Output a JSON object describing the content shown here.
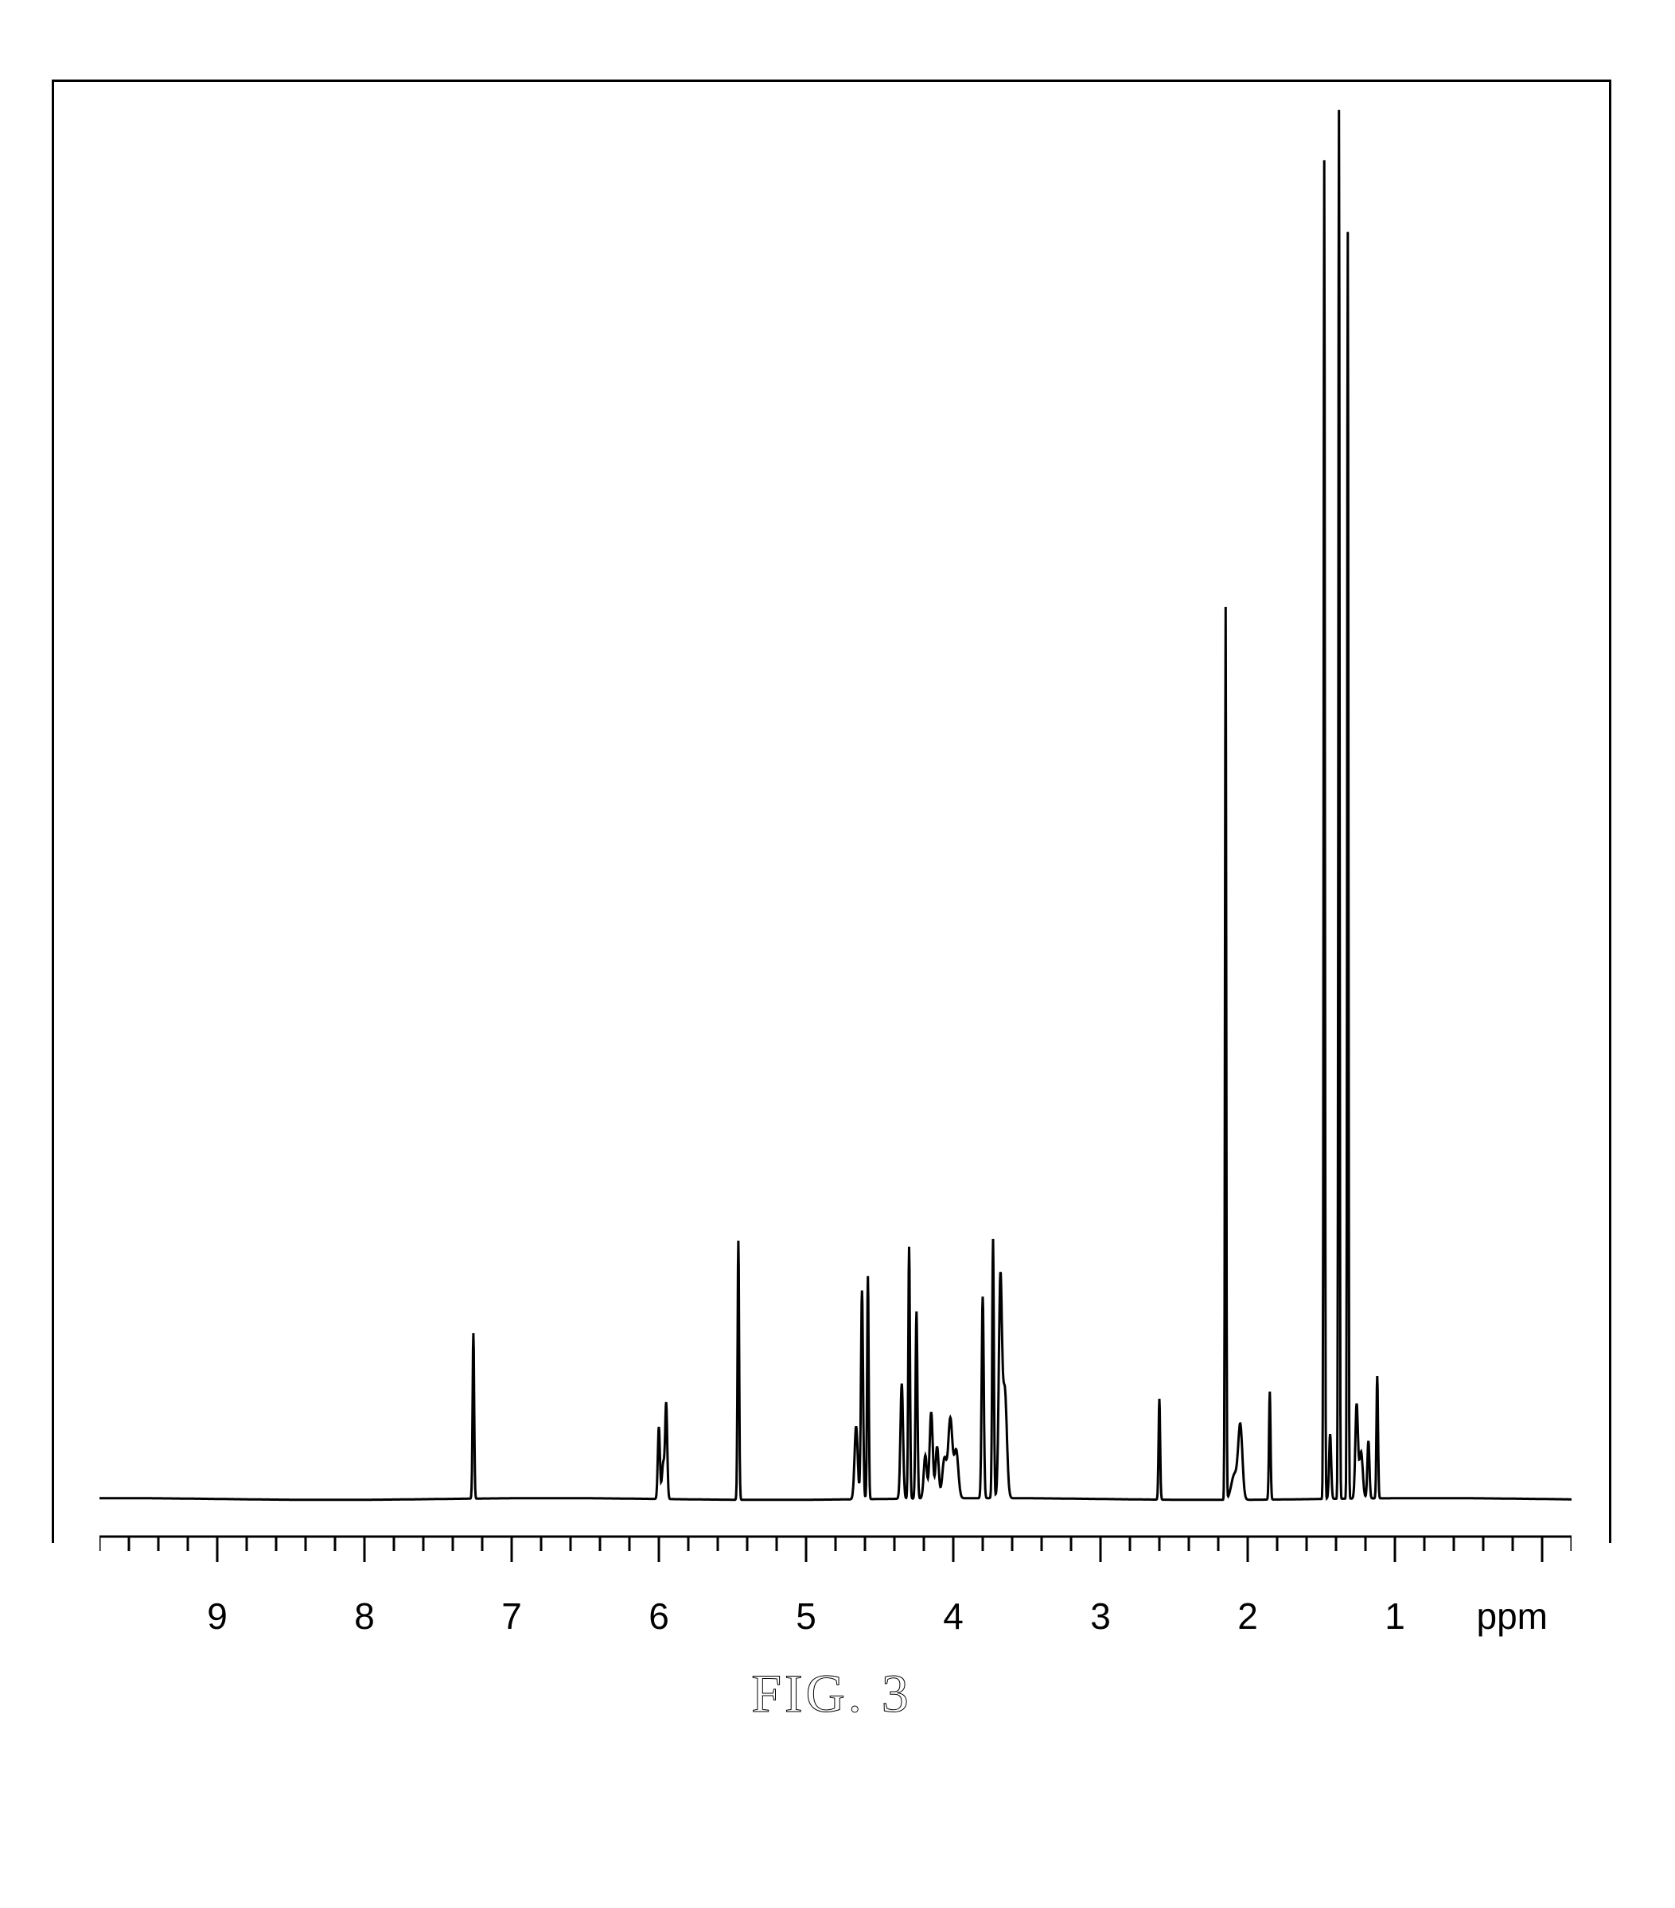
{
  "nmr_spectrum": {
    "type": "nmr_spectrum",
    "xlim": [
      9.8,
      -0.2
    ],
    "ylim": [
      0,
      100
    ],
    "x_axis_label": "ppm",
    "tick_labels": [
      "9",
      "8",
      "7",
      "6",
      "5",
      "4",
      "3",
      "2",
      "1"
    ],
    "tick_positions": [
      9,
      8,
      7,
      6,
      5,
      4,
      3,
      2,
      1
    ],
    "minor_tick_step": 0.2,
    "background_color": "#ffffff",
    "line_color": "#000000",
    "line_width": 3,
    "axis_line_width": 3,
    "tick_font_size": 46,
    "caption": "FIG. 3",
    "caption_font_size": 68,
    "baseline_height": 2.5,
    "peaks": [
      {
        "ppm": 7.26,
        "height": 11.5,
        "width": 0.015
      },
      {
        "ppm": 6.0,
        "height": 5.0,
        "width": 0.02,
        "shoulder": true
      },
      {
        "ppm": 5.95,
        "height": 6.5,
        "width": 0.02
      },
      {
        "ppm": 5.46,
        "height": 18.0,
        "width": 0.015
      },
      {
        "ppm": 4.62,
        "height": 14.5,
        "width": 0.02,
        "shoulder_left": true
      },
      {
        "ppm": 4.58,
        "height": 15.5,
        "width": 0.015
      },
      {
        "ppm": 4.35,
        "height": 8.0,
        "width": 0.025
      },
      {
        "ppm": 4.3,
        "height": 17.5,
        "width": 0.016
      },
      {
        "ppm": 4.25,
        "height": 13.0,
        "width": 0.018
      },
      {
        "ppm": 4.15,
        "height": 6.0,
        "width": 0.03,
        "multiplet": true
      },
      {
        "ppm": 4.02,
        "height": 5.5,
        "width": 0.04,
        "multiplet": true
      },
      {
        "ppm": 3.8,
        "height": 14.0,
        "width": 0.02
      },
      {
        "ppm": 3.73,
        "height": 18.0,
        "width": 0.016
      },
      {
        "ppm": 3.68,
        "height": 15.0,
        "width": 0.03,
        "shoulder": true
      },
      {
        "ppm": 2.6,
        "height": 7.0,
        "width": 0.015
      },
      {
        "ppm": 2.15,
        "height": 62.0,
        "width": 0.012
      },
      {
        "ppm": 2.05,
        "height": 5.0,
        "width": 0.04,
        "shoulder_left": true
      },
      {
        "ppm": 1.85,
        "height": 7.5,
        "width": 0.015
      },
      {
        "ppm": 1.48,
        "height": 93.0,
        "width": 0.012
      },
      {
        "ppm": 1.44,
        "height": 4.5,
        "width": 0.02
      },
      {
        "ppm": 1.38,
        "height": 98.0,
        "width": 0.012
      },
      {
        "ppm": 1.32,
        "height": 88.0,
        "width": 0.012
      },
      {
        "ppm": 1.26,
        "height": 6.5,
        "width": 0.025,
        "shoulder": true
      },
      {
        "ppm": 1.18,
        "height": 4.0,
        "width": 0.02
      },
      {
        "ppm": 1.12,
        "height": 8.5,
        "width": 0.015
      }
    ]
  }
}
